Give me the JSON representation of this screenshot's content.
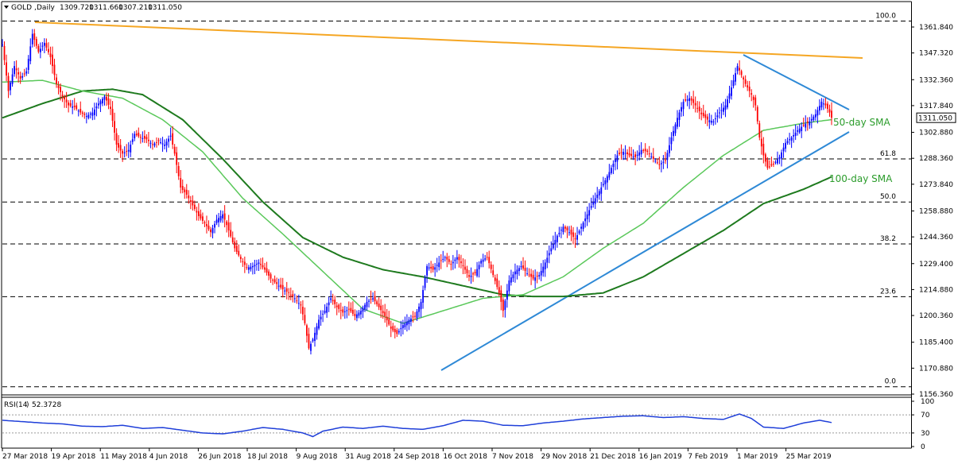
{
  "chart_data": {
    "type": "candlestick",
    "symbol": "GOLD",
    "timeframe": "Daily",
    "ohlc_header": {
      "open": "1309.720",
      "high": "1311.660",
      "low": "1307.210",
      "close": "1311.050"
    },
    "last_price": "1311.050",
    "ylim": [
      1156.36,
      1370
    ],
    "price_ticks": [
      "1361.840",
      "1347.320",
      "1332.360",
      "1317.840",
      "1302.880",
      "1288.360",
      "1273.840",
      "1258.880",
      "1244.360",
      "1229.400",
      "1214.880",
      "1200.360",
      "1185.400",
      "1170.880",
      "1156.360"
    ],
    "date_labels": [
      "27 Mar 2018",
      "19 Apr 2018",
      "11 May 2018",
      "4 Jun 2018",
      "26 Jun 2018",
      "18 Jul 2018",
      "9 Aug 2018",
      "31 Aug 2018",
      "24 Sep 2018",
      "16 Oct 2018",
      "7 Nov 2018",
      "29 Nov 2018",
      "21 Dec 2018",
      "16 Jan 2019",
      "7 Feb 2019",
      "1 Mar 2019",
      "25 Mar 2019"
    ],
    "fib_levels": [
      {
        "label": "100.0",
        "price": 1365.2
      },
      {
        "label": "61.8",
        "price": 1288.0
      },
      {
        "label": "50.0",
        "price": 1263.9
      },
      {
        "label": "38.2",
        "price": 1240.4
      },
      {
        "label": "23.6",
        "price": 1210.9
      },
      {
        "label": "0.0",
        "price": 1160.5
      }
    ],
    "annotations": [
      "50-day SMA",
      "100-day SMA"
    ],
    "price_path": [
      [
        0,
        1352
      ],
      [
        3,
        1326
      ],
      [
        6,
        1340
      ],
      [
        9,
        1333
      ],
      [
        12,
        1337
      ],
      [
        15,
        1358
      ],
      [
        18,
        1348
      ],
      [
        21,
        1353
      ],
      [
        24,
        1345
      ],
      [
        27,
        1330
      ],
      [
        30,
        1323
      ],
      [
        33,
        1318
      ],
      [
        36,
        1317
      ],
      [
        39,
        1314
      ],
      [
        42,
        1312
      ],
      [
        45,
        1314
      ],
      [
        48,
        1319
      ],
      [
        51,
        1323
      ],
      [
        54,
        1316
      ],
      [
        57,
        1296
      ],
      [
        60,
        1291
      ],
      [
        63,
        1293
      ],
      [
        66,
        1302
      ],
      [
        69,
        1300
      ],
      [
        72,
        1299
      ],
      [
        75,
        1296
      ],
      [
        78,
        1298
      ],
      [
        81,
        1296
      ],
      [
        84,
        1301
      ],
      [
        86,
        1291
      ],
      [
        89,
        1272
      ],
      [
        92,
        1268
      ],
      [
        95,
        1262
      ],
      [
        98,
        1256
      ],
      [
        101,
        1252
      ],
      [
        104,
        1247
      ],
      [
        107,
        1254
      ],
      [
        110,
        1257
      ],
      [
        113,
        1248
      ],
      [
        116,
        1238
      ],
      [
        119,
        1232
      ],
      [
        122,
        1227
      ],
      [
        125,
        1228
      ],
      [
        128,
        1230
      ],
      [
        131,
        1226
      ],
      [
        134,
        1221
      ],
      [
        137,
        1218
      ],
      [
        140,
        1215
      ],
      [
        143,
        1213
      ],
      [
        146,
        1210
      ],
      [
        149,
        1206
      ],
      [
        151,
        1196
      ],
      [
        153,
        1182
      ],
      [
        155,
        1187
      ],
      [
        158,
        1198
      ],
      [
        161,
        1203
      ],
      [
        164,
        1210
      ],
      [
        167,
        1205
      ],
      [
        170,
        1202
      ],
      [
        173,
        1204
      ],
      [
        176,
        1200
      ],
      [
        179,
        1203
      ],
      [
        182,
        1208
      ],
      [
        185,
        1210
      ],
      [
        188,
        1205
      ],
      [
        191,
        1200
      ],
      [
        194,
        1193
      ],
      [
        197,
        1190
      ],
      [
        200,
        1195
      ],
      [
        203,
        1198
      ],
      [
        206,
        1200
      ],
      [
        209,
        1208
      ],
      [
        212,
        1228
      ],
      [
        215,
        1226
      ],
      [
        218,
        1230
      ],
      [
        221,
        1233
      ],
      [
        224,
        1229
      ],
      [
        227,
        1233
      ],
      [
        230,
        1228
      ],
      [
        233,
        1222
      ],
      [
        236,
        1224
      ],
      [
        239,
        1231
      ],
      [
        242,
        1233
      ],
      [
        245,
        1223
      ],
      [
        248,
        1213
      ],
      [
        250,
        1203
      ],
      [
        253,
        1220
      ],
      [
        256,
        1225
      ],
      [
        259,
        1228
      ],
      [
        262,
        1224
      ],
      [
        265,
        1221
      ],
      [
        268,
        1223
      ],
      [
        271,
        1230
      ],
      [
        274,
        1238
      ],
      [
        277,
        1245
      ],
      [
        280,
        1250
      ],
      [
        283,
        1247
      ],
      [
        286,
        1243
      ],
      [
        289,
        1250
      ],
      [
        292,
        1257
      ],
      [
        295,
        1264
      ],
      [
        298,
        1270
      ],
      [
        301,
        1276
      ],
      [
        304,
        1283
      ],
      [
        307,
        1290
      ],
      [
        310,
        1292
      ],
      [
        313,
        1290
      ],
      [
        316,
        1289
      ],
      [
        319,
        1293
      ],
      [
        322,
        1292
      ],
      [
        325,
        1288
      ],
      [
        328,
        1285
      ],
      [
        331,
        1287
      ],
      [
        334,
        1300
      ],
      [
        337,
        1311
      ],
      [
        340,
        1320
      ],
      [
        343,
        1322
      ],
      [
        346,
        1318
      ],
      [
        349,
        1313
      ],
      [
        352,
        1310
      ],
      [
        355,
        1309
      ],
      [
        358,
        1314
      ],
      [
        361,
        1318
      ],
      [
        364,
        1328
      ],
      [
        367,
        1340
      ],
      [
        369,
        1335
      ],
      [
        371,
        1330
      ],
      [
        374,
        1324
      ],
      [
        376,
        1318
      ],
      [
        378,
        1300
      ],
      [
        380,
        1290
      ],
      [
        382,
        1283
      ],
      [
        385,
        1285
      ],
      [
        388,
        1289
      ],
      [
        391,
        1297
      ],
      [
        394,
        1300
      ],
      [
        397,
        1304
      ],
      [
        400,
        1307
      ],
      [
        403,
        1309
      ],
      [
        406,
        1313
      ],
      [
        409,
        1320
      ],
      [
        411,
        1318
      ],
      [
        413,
        1314
      ],
      [
        414,
        1311
      ]
    ],
    "sma50": [
      [
        0,
        1331
      ],
      [
        20,
        1332
      ],
      [
        40,
        1326
      ],
      [
        60,
        1322
      ],
      [
        80,
        1310
      ],
      [
        100,
        1292
      ],
      [
        120,
        1266
      ],
      [
        140,
        1246
      ],
      [
        160,
        1225
      ],
      [
        180,
        1204
      ],
      [
        200,
        1196
      ],
      [
        220,
        1203
      ],
      [
        240,
        1210
      ],
      [
        260,
        1212
      ],
      [
        280,
        1222
      ],
      [
        300,
        1238
      ],
      [
        320,
        1252
      ],
      [
        340,
        1272
      ],
      [
        360,
        1290
      ],
      [
        380,
        1304
      ],
      [
        400,
        1308
      ],
      [
        414,
        1310
      ]
    ],
    "sma100": [
      [
        0,
        1311
      ],
      [
        20,
        1319
      ],
      [
        40,
        1326
      ],
      [
        55,
        1327
      ],
      [
        70,
        1324
      ],
      [
        90,
        1310
      ],
      [
        110,
        1288
      ],
      [
        130,
        1264
      ],
      [
        150,
        1244
      ],
      [
        170,
        1233
      ],
      [
        190,
        1226
      ],
      [
        210,
        1222
      ],
      [
        230,
        1217
      ],
      [
        250,
        1212
      ],
      [
        265,
        1211
      ],
      [
        280,
        1211
      ],
      [
        300,
        1213
      ],
      [
        320,
        1222
      ],
      [
        340,
        1235
      ],
      [
        360,
        1248
      ],
      [
        380,
        1263
      ],
      [
        400,
        1271
      ],
      [
        414,
        1278
      ]
    ],
    "rsi": {
      "period": 14,
      "value": "52.3728",
      "levels": [
        "100",
        "70",
        "30",
        "0"
      ],
      "ylim": [
        0,
        100
      ],
      "series": [
        [
          0,
          58
        ],
        [
          10,
          55
        ],
        [
          20,
          52
        ],
        [
          30,
          50
        ],
        [
          40,
          45
        ],
        [
          50,
          44
        ],
        [
          60,
          47
        ],
        [
          70,
          40
        ],
        [
          80,
          42
        ],
        [
          90,
          36
        ],
        [
          100,
          30
        ],
        [
          110,
          28
        ],
        [
          120,
          34
        ],
        [
          130,
          42
        ],
        [
          140,
          38
        ],
        [
          150,
          30
        ],
        [
          155,
          22
        ],
        [
          160,
          34
        ],
        [
          170,
          43
        ],
        [
          180,
          40
        ],
        [
          190,
          45
        ],
        [
          200,
          40
        ],
        [
          210,
          38
        ],
        [
          220,
          46
        ],
        [
          230,
          58
        ],
        [
          240,
          56
        ],
        [
          250,
          47
        ],
        [
          260,
          46
        ],
        [
          270,
          52
        ],
        [
          280,
          56
        ],
        [
          290,
          61
        ],
        [
          300,
          64
        ],
        [
          310,
          67
        ],
        [
          320,
          68
        ],
        [
          330,
          64
        ],
        [
          340,
          66
        ],
        [
          350,
          62
        ],
        [
          360,
          60
        ],
        [
          368,
          72
        ],
        [
          374,
          62
        ],
        [
          380,
          43
        ],
        [
          390,
          40
        ],
        [
          400,
          52
        ],
        [
          408,
          58
        ],
        [
          414,
          53
        ]
      ]
    }
  }
}
